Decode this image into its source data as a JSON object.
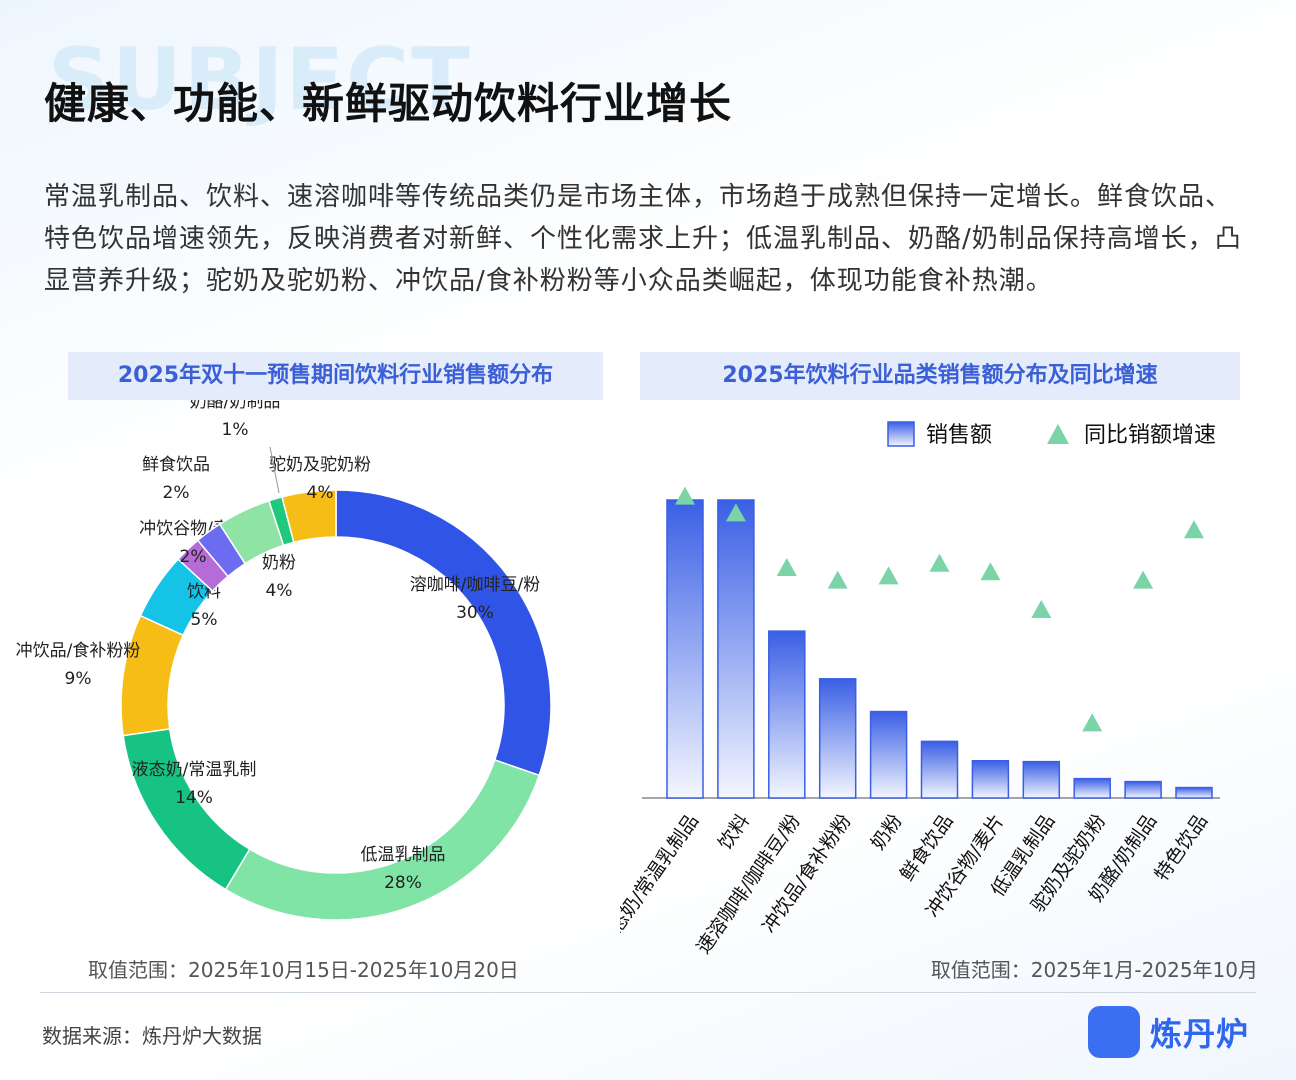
{
  "header": {
    "watermark": "SUBJECT",
    "title": "健康、功能、新鲜驱动饮料行业增长",
    "intro": "常温乳制品、饮料、速溶咖啡等传统品类仍是市场主体，市场趋于成熟但保持一定增长。鲜食饮品、特色饮品增速领先，反映消费者对新鲜、个性化需求上升；低温乳制品、奶酪/奶制品保持高增长，凸显营养升级；驼奶及驼奶粉、冲饮品/食补粉粉等小众品类崛起，体现功能食补热潮。"
  },
  "chart_data": [
    {
      "type": "pie",
      "title": "2025年双十一预售期间饮料行业销售额分布",
      "donut": true,
      "slices": [
        {
          "label": "溶咖啡/咖啡豆/粉",
          "value": 30,
          "pct_label": "30%",
          "color": "#3055e6"
        },
        {
          "label": "低温乳制品",
          "value": 28,
          "pct_label": "28%",
          "color": "#7fe4a5"
        },
        {
          "label": "液态奶/常温乳制",
          "value": 14,
          "pct_label": "14%",
          "color": "#16c383"
        },
        {
          "label": "冲饮品/食补粉粉",
          "value": 9,
          "pct_label": "9%",
          "color": "#f6bd16"
        },
        {
          "label": "饮料",
          "value": 5,
          "pct_label": "5%",
          "color": "#14c3e6"
        },
        {
          "label": "冲饮谷物/麦片",
          "value": 2,
          "pct_label": "2%",
          "color": "#b56cd6"
        },
        {
          "label": "鲜食饮品",
          "value": 2,
          "pct_label": "2%",
          "color": "#6b6cf0"
        },
        {
          "label": "奶粉",
          "value": 4,
          "pct_label": "4%",
          "color": "#8fe3a5"
        },
        {
          "label": "奶酪/奶制品",
          "value": 1,
          "pct_label": "1%",
          "color": "#1fc87d"
        },
        {
          "label": "驼奶及驼奶粉",
          "value": 4,
          "pct_label": "4%",
          "color": "#f6bd16"
        }
      ],
      "note": "取值范围：2025年10月15日-2025年10月20日"
    },
    {
      "type": "bar",
      "title": "2025年饮料行业品类销售额分布及同比增速",
      "categories": [
        "液态奶/常温乳制品",
        "饮料",
        "速溶咖啡/咖啡豆/粉",
        "冲饮品/食补粉粉",
        "奶粉",
        "鲜食饮品",
        "冲饮谷物/麦片",
        "低温乳制品",
        "驼奶及驼奶粉",
        "奶酪/奶制品",
        "特色饮品"
      ],
      "series": [
        {
          "name": "销售额",
          "kind": "bar",
          "values": [
            100,
            100,
            56,
            40,
            29,
            19,
            12.5,
            12.2,
            6.5,
            5.5,
            3.5
          ]
        },
        {
          "name": "同比销额增速",
          "kind": "marker-triangle",
          "values": [
            72,
            68,
            55,
            52,
            53,
            56,
            54,
            45,
            18,
            52,
            64
          ]
        }
      ],
      "note": "取值范围：2025年1月-2025年10月",
      "bar_color": "#3a5fe5",
      "marker_color": "#7bd3a8"
    }
  ],
  "footer": {
    "source": "数据来源：炼丹炉大数据",
    "brand": "炼丹炉"
  }
}
